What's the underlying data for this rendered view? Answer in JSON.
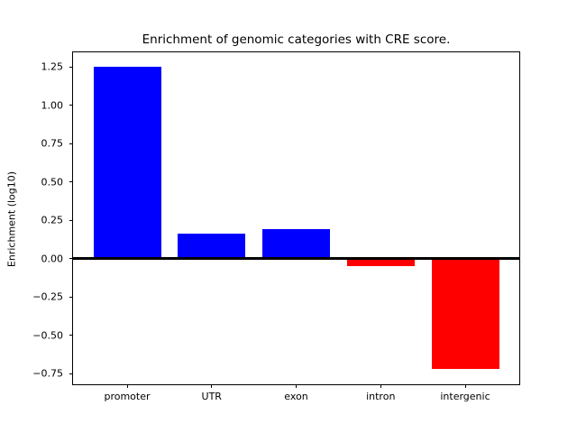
{
  "chart_data": {
    "type": "bar",
    "title": "Enrichment of genomic categories with CRE score.",
    "xlabel": "",
    "ylabel": "Enrichment (log10)",
    "categories": [
      "promoter",
      "UTR",
      "exon",
      "intron",
      "intergenic"
    ],
    "values": [
      1.25,
      0.16,
      0.19,
      -0.05,
      -0.72
    ],
    "bar_colors": [
      "#0000ff",
      "#0000ff",
      "#0000ff",
      "#ff0000",
      "#ff0000"
    ],
    "positive_color": "#0000ff",
    "negative_color": "#ff0000",
    "bar_width_frac": 0.8,
    "xlim": [
      -0.64,
      4.64
    ],
    "ylim": [
      -0.82,
      1.345
    ],
    "yticks": [
      -0.75,
      -0.5,
      -0.25,
      0,
      0.25,
      0.5,
      0.75,
      1.0,
      1.25
    ],
    "ytick_labels": [
      "−0.75",
      "−0.50",
      "−0.25",
      "0.00",
      "0.25",
      "0.50",
      "0.75",
      "1.00",
      "1.25"
    ],
    "grid": false,
    "legend": false,
    "zero_line_color": "#000000",
    "axis_color": "#000000",
    "text_color": "#000000",
    "background": "#ffffff"
  }
}
